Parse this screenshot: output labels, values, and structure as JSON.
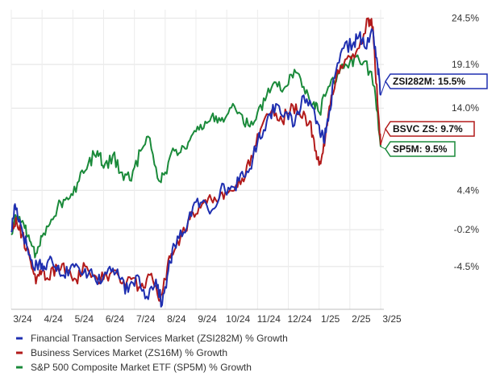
{
  "chart_data": {
    "type": "line",
    "title": "",
    "xlabel": "",
    "ylabel": "",
    "ylim": [
      -9.5,
      25.5
    ],
    "grid": true,
    "legend_placement": "bottom-left",
    "x_ticks": [
      "3/24",
      "4/24",
      "5/24",
      "6/24",
      "7/24",
      "8/24",
      "9/24",
      "10/24",
      "11/24",
      "12/24",
      "1/25",
      "2/25",
      "3/25"
    ],
    "y_ticks": [
      {
        "value": 24.5,
        "label": "24.5%"
      },
      {
        "value": 19.1,
        "label": "19.1%"
      },
      {
        "value": 14.0,
        "label": "14.0%"
      },
      {
        "value": 4.4,
        "label": "4.4%"
      },
      {
        "value": -0.2,
        "label": "-0.2%"
      },
      {
        "value": -4.5,
        "label": "-4.5%"
      }
    ],
    "series": [
      {
        "name": "Financial Transaction Services Market (ZSI282M) % Growth",
        "color": "#1f2fb0",
        "badge": "ZSI282M: 15.5%",
        "last": 15.5,
        "points": [
          [
            0,
            -0.5
          ],
          [
            0.12,
            2.8
          ],
          [
            0.3,
            0.5
          ],
          [
            0.5,
            -2.0
          ],
          [
            0.7,
            -4.5
          ],
          [
            0.9,
            -4.0
          ],
          [
            1.1,
            -4.8
          ],
          [
            1.3,
            -3.5
          ],
          [
            1.5,
            -4.5
          ],
          [
            1.7,
            -5.5
          ],
          [
            2.0,
            -4.2
          ],
          [
            2.3,
            -5.5
          ],
          [
            2.6,
            -4.8
          ],
          [
            2.9,
            -6.5
          ],
          [
            3.2,
            -4.5
          ],
          [
            3.5,
            -5.8
          ],
          [
            3.8,
            -7.5
          ],
          [
            4.1,
            -5.5
          ],
          [
            4.4,
            -8.0
          ],
          [
            4.7,
            -6.0
          ],
          [
            4.9,
            -9.0
          ],
          [
            5.1,
            -5.0
          ],
          [
            5.3,
            -2.0
          ],
          [
            5.6,
            -0.5
          ],
          [
            5.9,
            2.5
          ],
          [
            6.2,
            3.0
          ],
          [
            6.5,
            2.0
          ],
          [
            6.8,
            4.5
          ],
          [
            7.1,
            4.5
          ],
          [
            7.4,
            5.5
          ],
          [
            7.7,
            6.5
          ],
          [
            8.0,
            10.0
          ],
          [
            8.3,
            12.5
          ],
          [
            8.6,
            14.5
          ],
          [
            8.9,
            13.5
          ],
          [
            9.2,
            12.0
          ],
          [
            9.5,
            15.5
          ],
          [
            9.8,
            14.0
          ],
          [
            10.0,
            12.0
          ],
          [
            10.15,
            10.0
          ],
          [
            10.3,
            12.5
          ],
          [
            10.5,
            17.5
          ],
          [
            10.8,
            21.0
          ],
          [
            11.1,
            21.5
          ],
          [
            11.3,
            22.5
          ],
          [
            11.5,
            21.0
          ],
          [
            11.75,
            23.0
          ],
          [
            11.9,
            19.0
          ],
          [
            12.0,
            15.5
          ]
        ]
      },
      {
        "name": "Business Services Market (ZS16M) % Growth",
        "color": "#b21a1a",
        "badge": "BSVC ZS: 9.7%",
        "last": 9.7,
        "points": [
          [
            0,
            -0.2
          ],
          [
            0.15,
            1.2
          ],
          [
            0.35,
            -0.8
          ],
          [
            0.6,
            -3.5
          ],
          [
            0.8,
            -6.5
          ],
          [
            1.0,
            -5.0
          ],
          [
            1.2,
            -6.0
          ],
          [
            1.5,
            -4.5
          ],
          [
            1.8,
            -5.0
          ],
          [
            2.1,
            -6.0
          ],
          [
            2.4,
            -4.5
          ],
          [
            2.7,
            -5.5
          ],
          [
            3.0,
            -6.0
          ],
          [
            3.3,
            -5.0
          ],
          [
            3.6,
            -6.5
          ],
          [
            3.9,
            -6.0
          ],
          [
            4.2,
            -7.0
          ],
          [
            4.5,
            -5.5
          ],
          [
            4.8,
            -8.5
          ],
          [
            5.0,
            -6.0
          ],
          [
            5.2,
            -3.0
          ],
          [
            5.5,
            -1.0
          ],
          [
            5.8,
            1.0
          ],
          [
            6.1,
            2.5
          ],
          [
            6.4,
            3.5
          ],
          [
            6.7,
            3.0
          ],
          [
            7.0,
            4.0
          ],
          [
            7.3,
            5.0
          ],
          [
            7.6,
            6.0
          ],
          [
            7.9,
            9.5
          ],
          [
            8.2,
            12.5
          ],
          [
            8.5,
            14.0
          ],
          [
            8.8,
            12.5
          ],
          [
            9.1,
            14.5
          ],
          [
            9.4,
            13.0
          ],
          [
            9.7,
            12.5
          ],
          [
            9.9,
            9.0
          ],
          [
            10.05,
            7.5
          ],
          [
            10.2,
            10.5
          ],
          [
            10.4,
            15.5
          ],
          [
            10.7,
            19.0
          ],
          [
            11.0,
            20.0
          ],
          [
            11.3,
            21.0
          ],
          [
            11.6,
            24.5
          ],
          [
            11.75,
            23.5
          ],
          [
            11.9,
            14.5
          ],
          [
            12.0,
            9.7
          ]
        ]
      },
      {
        "name": "S&P 500 Composite Market ETF (SP5M) % Growth",
        "color": "#1a8a3a",
        "badge": "SP5M: 9.5%",
        "last": 9.5,
        "points": [
          [
            0,
            -0.8
          ],
          [
            0.2,
            1.5
          ],
          [
            0.4,
            0.5
          ],
          [
            0.6,
            -1.5
          ],
          [
            0.8,
            -3.0
          ],
          [
            1.0,
            -1.0
          ],
          [
            1.3,
            1.0
          ],
          [
            1.6,
            3.0
          ],
          [
            1.9,
            3.5
          ],
          [
            2.2,
            5.5
          ],
          [
            2.5,
            7.5
          ],
          [
            2.8,
            9.0
          ],
          [
            3.0,
            7.0
          ],
          [
            3.3,
            8.5
          ],
          [
            3.6,
            6.5
          ],
          [
            3.9,
            5.5
          ],
          [
            4.2,
            9.0
          ],
          [
            4.5,
            10.5
          ],
          [
            4.8,
            5.5
          ],
          [
            5.0,
            6.5
          ],
          [
            5.3,
            9.0
          ],
          [
            5.6,
            9.5
          ],
          [
            5.9,
            11.0
          ],
          [
            6.2,
            11.5
          ],
          [
            6.5,
            13.0
          ],
          [
            6.8,
            12.5
          ],
          [
            7.1,
            14.0
          ],
          [
            7.4,
            13.5
          ],
          [
            7.7,
            12.0
          ],
          [
            8.0,
            13.5
          ],
          [
            8.3,
            15.5
          ],
          [
            8.6,
            17.0
          ],
          [
            8.9,
            16.5
          ],
          [
            9.2,
            18.5
          ],
          [
            9.5,
            16.5
          ],
          [
            9.8,
            14.5
          ],
          [
            10.0,
            13.5
          ],
          [
            10.3,
            16.5
          ],
          [
            10.6,
            18.0
          ],
          [
            10.9,
            19.0
          ],
          [
            11.2,
            20.0
          ],
          [
            11.5,
            19.5
          ],
          [
            11.8,
            16.5
          ],
          [
            12.0,
            9.5
          ]
        ]
      }
    ]
  }
}
